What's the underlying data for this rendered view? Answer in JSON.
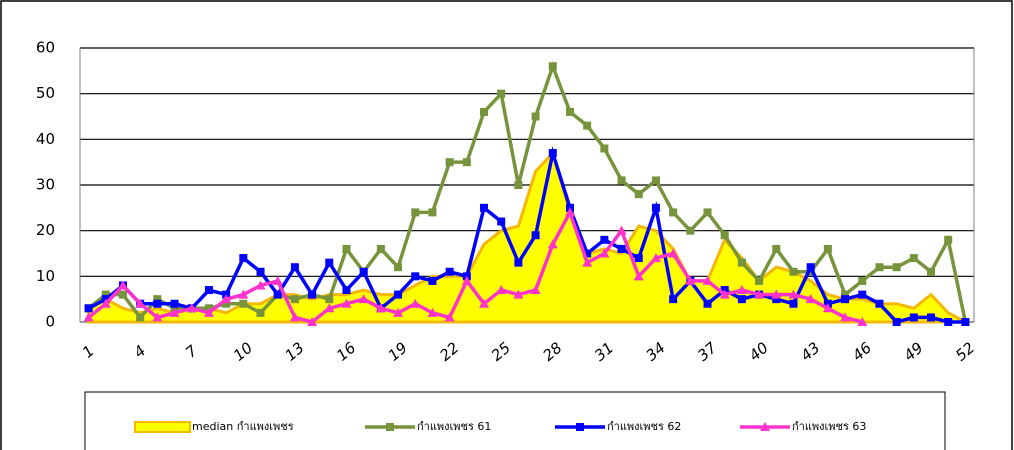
{
  "chart_data": {
    "type": "line",
    "categories": [
      1,
      null,
      null,
      4,
      null,
      null,
      7,
      null,
      null,
      10,
      null,
      null,
      13,
      null,
      null,
      16,
      null,
      null,
      19,
      null,
      null,
      22,
      null,
      null,
      25,
      null,
      null,
      28,
      null,
      null,
      31,
      null,
      null,
      34,
      null,
      null,
      37,
      null,
      null,
      40,
      null,
      null,
      43,
      null,
      null,
      46,
      null,
      null,
      49,
      null,
      null,
      52
    ],
    "ylim": [
      0,
      60
    ],
    "yticks": [
      0,
      10,
      20,
      30,
      40,
      50,
      60
    ],
    "grid": true,
    "series": [
      {
        "name": "median กำแพงเพชร",
        "color": "#ffff00",
        "edge_color": "#f5b800",
        "style": "area",
        "values": [
          3,
          5,
          3,
          2,
          3,
          2,
          3,
          3,
          2,
          4,
          4,
          6,
          6,
          5,
          6,
          6,
          7,
          6,
          6,
          8,
          10,
          10,
          10,
          17,
          20,
          21,
          33,
          37,
          24,
          15,
          16,
          15,
          21,
          20,
          16,
          9,
          9,
          18,
          14,
          9,
          12,
          11,
          9,
          6,
          5,
          5,
          4,
          4,
          3,
          6,
          2,
          0
        ]
      },
      {
        "name": "กำแพงเพชร 61",
        "color": "#77933c",
        "marker": "square",
        "values": [
          3,
          6,
          6,
          1,
          5,
          3,
          3,
          3,
          4,
          4,
          2,
          6,
          5,
          6,
          5,
          16,
          11,
          16,
          12,
          24,
          24,
          35,
          35,
          46,
          50,
          30,
          45,
          56,
          46,
          43,
          38,
          31,
          28,
          31,
          24,
          20,
          24,
          19,
          13,
          9,
          16,
          11,
          11,
          16,
          6,
          9,
          12,
          12,
          14,
          11,
          18,
          0
        ]
      },
      {
        "name": "กำแพงเพชร 62",
        "color": "#0000ff",
        "marker": "square",
        "values": [
          3,
          5,
          8,
          4,
          4,
          4,
          3,
          7,
          6,
          14,
          11,
          6,
          12,
          6,
          13,
          7,
          11,
          3,
          6,
          10,
          9,
          11,
          10,
          25,
          22,
          13,
          19,
          37,
          25,
          15,
          18,
          16,
          14,
          25,
          5,
          9,
          4,
          7,
          5,
          6,
          5,
          4,
          12,
          4,
          5,
          6,
          4,
          0,
          1,
          1,
          0,
          0
        ]
      },
      {
        "name": "กำแพงเพชร 63",
        "color": "#ff33cc",
        "marker": "triangle",
        "values": [
          1,
          4,
          8,
          4,
          1,
          2,
          3,
          2,
          5,
          6,
          8,
          9,
          1,
          0,
          3,
          4,
          5,
          3,
          2,
          4,
          2,
          1,
          9,
          4,
          7,
          6,
          7,
          17,
          24,
          13,
          15,
          20,
          10,
          14,
          15,
          9,
          9,
          6,
          7,
          6,
          6,
          6,
          5,
          3,
          1,
          0,
          null,
          null,
          null,
          null,
          null,
          null
        ]
      }
    ]
  }
}
